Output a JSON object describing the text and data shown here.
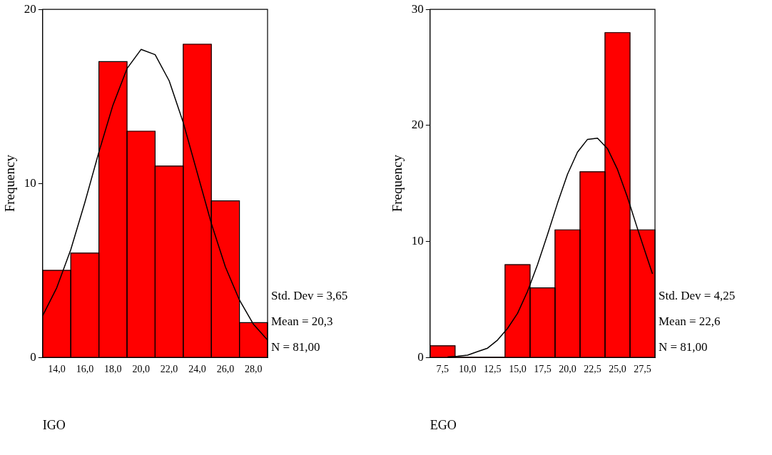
{
  "chart_data": [
    {
      "type": "histogram",
      "xlabel": "IGO",
      "ylabel": "Frequency",
      "bins": [
        13,
        15,
        17,
        19,
        21,
        23,
        25,
        27,
        29
      ],
      "series": [
        {
          "type": "histogram",
          "color": "#ff0000",
          "values": [
            5,
            6,
            17,
            13,
            11,
            18,
            9,
            2
          ]
        },
        {
          "type": "line",
          "color": "#000000",
          "x": [
            13,
            14,
            15,
            16,
            17,
            18,
            19,
            20,
            21,
            22,
            23,
            24,
            25,
            26,
            27,
            28,
            29
          ],
          "values": [
            2.4,
            4.0,
            6.2,
            8.9,
            11.8,
            14.5,
            16.6,
            17.7,
            17.4,
            15.9,
            13.5,
            10.6,
            7.7,
            5.2,
            3.3,
            1.9,
            1.0
          ]
        }
      ],
      "xlim": [
        13,
        29
      ],
      "xticks": [
        {
          "value": 14,
          "label": "14,0"
        },
        {
          "value": 16,
          "label": "16,0"
        },
        {
          "value": 18,
          "label": "18,0"
        },
        {
          "value": 20,
          "label": "20,0"
        },
        {
          "value": 22,
          "label": "22,0"
        },
        {
          "value": 24,
          "label": "24,0"
        },
        {
          "value": 26,
          "label": "26,0"
        },
        {
          "value": 28,
          "label": "28,0"
        }
      ],
      "ylim": [
        0,
        20
      ],
      "yticks": [
        0,
        10,
        20
      ],
      "annotations": [
        "Std. Dev = 3,65",
        "Mean = 20,3",
        "N = 81,00"
      ]
    },
    {
      "type": "histogram",
      "xlabel": "EGO",
      "ylabel": "Frequency",
      "bins": [
        6.25,
        8.75,
        11.25,
        13.75,
        16.25,
        18.75,
        21.25,
        23.75,
        26.25,
        28.75
      ],
      "series": [
        {
          "type": "histogram",
          "color": "#ff0000",
          "values": [
            1,
            0,
            0,
            8,
            6,
            11,
            16,
            28,
            11
          ]
        },
        {
          "type": "line",
          "color": "#000000",
          "x": [
            8,
            9,
            10,
            11,
            12,
            13,
            14,
            15,
            16,
            17,
            18,
            19,
            20,
            21,
            22,
            23,
            24,
            25,
            26,
            27,
            28,
            28.5
          ],
          "values": [
            0.05,
            0.1,
            0.2,
            0.5,
            0.8,
            1.5,
            2.5,
            3.8,
            5.7,
            8.0,
            10.6,
            13.3,
            15.8,
            17.7,
            18.8,
            18.9,
            18.0,
            16.2,
            13.8,
            11.1,
            8.5,
            7.2
          ]
        }
      ],
      "xlim": [
        6.25,
        28.75
      ],
      "xticks": [
        {
          "value": 7.5,
          "label": "7,5"
        },
        {
          "value": 10,
          "label": "10,0"
        },
        {
          "value": 12.5,
          "label": "12,5"
        },
        {
          "value": 15,
          "label": "15,0"
        },
        {
          "value": 17.5,
          "label": "17,5"
        },
        {
          "value": 20,
          "label": "20,0"
        },
        {
          "value": 22.5,
          "label": "22,5"
        },
        {
          "value": 25,
          "label": "25,0"
        },
        {
          "value": 27.5,
          "label": "27,5"
        }
      ],
      "ylim": [
        0,
        30
      ],
      "yticks": [
        0,
        10,
        20,
        30
      ],
      "annotations": [
        "Std. Dev = 4,25",
        "Mean = 22,6",
        "N = 81,00"
      ]
    }
  ]
}
